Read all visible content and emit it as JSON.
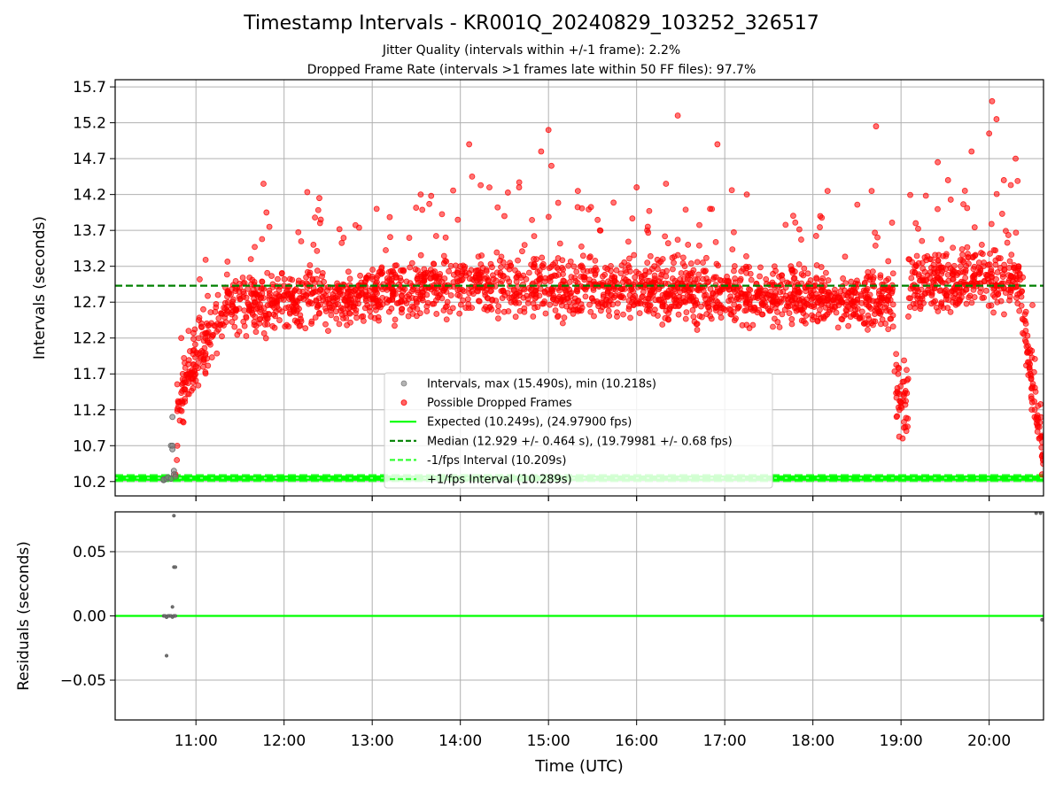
{
  "title": "Timestamp Intervals - KR001Q_20240829_103252_326517",
  "subtitle_1": "Jitter Quality (intervals within +/-1 frame): 2.2%",
  "subtitle_2": "Dropped Frame Rate (intervals >1 frames late within 50 FF files): 97.7%",
  "colors": {
    "dropped": "#ff0000",
    "intervals": "#808080",
    "expected": "#00ff00",
    "median": "#008000",
    "fps_band": "#33ff33",
    "grid": "#b0b0b0"
  },
  "chart_data": [
    {
      "type": "scatter",
      "title": "Timestamp Intervals - KR001Q_20240829_103252_326517",
      "xlabel": "",
      "ylabel": "Intervals (seconds)",
      "x_ticks": [
        "11:00",
        "12:00",
        "13:00",
        "14:00",
        "15:00",
        "16:00",
        "17:00",
        "18:00",
        "19:00",
        "20:00"
      ],
      "y_ticks": [
        "10.2",
        "10.7",
        "11.2",
        "11.7",
        "12.2",
        "12.7",
        "13.2",
        "13.7",
        "14.2",
        "14.7",
        "15.2",
        "15.7"
      ],
      "xlim": [
        "10:05",
        "20:37"
      ],
      "ylim": [
        10.0,
        15.8
      ],
      "grid": true,
      "legend_position": "lower-center",
      "series": [
        {
          "name": "Intervals, max (15.490s), min (10.218s)",
          "style": "gray dots",
          "points": [
            [
              "10:38",
              10.22
            ],
            [
              "10:38",
              10.23
            ],
            [
              "10:40",
              10.24
            ],
            [
              "10:41",
              10.26
            ],
            [
              "10:43",
              10.24
            ],
            [
              "10:43",
              10.7
            ],
            [
              "10:44",
              10.65
            ],
            [
              "10:44",
              10.7
            ],
            [
              "10:44",
              11.1
            ],
            [
              "10:45",
              10.35
            ],
            [
              "10:45",
              10.3
            ],
            [
              "10:46",
              10.27
            ]
          ]
        },
        {
          "name": "Possible Dropped Frames",
          "style": "red dots",
          "points": [
            [
              "10:46",
              10.3
            ],
            [
              "10:47",
              10.5
            ],
            [
              "10:48",
              11.3
            ],
            [
              "10:49",
              11.05
            ],
            [
              "10:50",
              12.2
            ],
            [
              "10:51",
              11.7
            ],
            [
              "10:55",
              12.3
            ],
            [
              "10:58",
              11.5
            ],
            [
              "11:02",
              12.45
            ],
            [
              "11:05",
              12.6
            ],
            [
              "11:15",
              12.8
            ],
            [
              "11:25",
              12.65
            ],
            [
              "11:40",
              12.7
            ],
            [
              "11:46",
              14.35
            ],
            [
              "11:48",
              13.95
            ],
            [
              "11:50",
              13.75
            ],
            [
              "12:00",
              12.8
            ],
            [
              "12:10",
              13.0
            ],
            [
              "12:20",
              13.5
            ],
            [
              "12:24",
              14.15
            ],
            [
              "12:25",
              13.85
            ],
            [
              "12:30",
              12.3
            ],
            [
              "12:40",
              12.8
            ],
            [
              "13:00",
              12.9
            ],
            [
              "13:03",
              14.0
            ],
            [
              "13:20",
              12.6
            ],
            [
              "13:33",
              14.2
            ],
            [
              "13:40",
              13.1
            ],
            [
              "13:50",
              13.6
            ],
            [
              "14:00",
              13.2
            ],
            [
              "14:06",
              14.9
            ],
            [
              "14:08",
              14.45
            ],
            [
              "14:15",
              12.9
            ],
            [
              "14:30",
              13.9
            ],
            [
              "14:40",
              14.3
            ],
            [
              "14:50",
              13.3
            ],
            [
              "14:55",
              14.8
            ],
            [
              "15:00",
              15.1
            ],
            [
              "15:02",
              14.6
            ],
            [
              "15:10",
              13.0
            ],
            [
              "15:20",
              14.25
            ],
            [
              "15:35",
              13.7
            ],
            [
              "15:45",
              13.05
            ],
            [
              "16:00",
              14.3
            ],
            [
              "16:12",
              13.2
            ],
            [
              "16:20",
              14.35
            ],
            [
              "16:28",
              15.3
            ],
            [
              "16:35",
              13.5
            ],
            [
              "16:50",
              14.0
            ],
            [
              "16:55",
              14.9
            ],
            [
              "17:00",
              13.0
            ],
            [
              "17:15",
              14.2
            ],
            [
              "17:30",
              12.8
            ],
            [
              "17:45",
              13.2
            ],
            [
              "17:55",
              12.9
            ],
            [
              "18:05",
              13.9
            ],
            [
              "18:10",
              14.25
            ],
            [
              "18:20",
              12.7
            ],
            [
              "18:30",
              13.0
            ],
            [
              "18:35",
              12.4
            ],
            [
              "18:40",
              14.25
            ],
            [
              "18:43",
              15.15
            ],
            [
              "18:50",
              13.0
            ],
            [
              "18:58",
              11.7
            ],
            [
              "19:00",
              11.3
            ],
            [
              "19:02",
              10.95
            ],
            [
              "19:05",
              12.5
            ],
            [
              "19:10",
              13.8
            ],
            [
              "19:15",
              13.0
            ],
            [
              "19:25",
              14.65
            ],
            [
              "19:32",
              14.4
            ],
            [
              "19:40",
              12.9
            ],
            [
              "19:48",
              14.8
            ],
            [
              "19:55",
              13.5
            ],
            [
              "20:00",
              15.05
            ],
            [
              "20:02",
              15.5
            ],
            [
              "20:05",
              15.25
            ],
            [
              "20:10",
              14.4
            ],
            [
              "20:18",
              14.7
            ],
            [
              "20:20",
              13.2
            ],
            [
              "20:25",
              12.4
            ],
            [
              "20:28",
              11.7
            ],
            [
              "20:31",
              11.2
            ],
            [
              "20:34",
              10.8
            ],
            [
              "20:36",
              10.3
            ]
          ]
        },
        {
          "name": "Expected (10.249s), (24.97900 fps)",
          "style": "solid line",
          "y": 10.249
        },
        {
          "name": "Median (12.929 +/- 0.464 s), (19.79981 +/- 0.68 fps)",
          "style": "dashed line",
          "y": 12.929
        },
        {
          "name": "-1/fps Interval (10.209s)",
          "style": "dashed line",
          "y": 10.209
        },
        {
          "name": "+1/fps Interval (10.289s)",
          "style": "dashed line",
          "y": 10.289
        }
      ]
    },
    {
      "type": "scatter",
      "title": "",
      "xlabel": "Time (UTC)",
      "ylabel": "Residuals (seconds)",
      "x_ticks": [
        "11:00",
        "12:00",
        "13:00",
        "14:00",
        "15:00",
        "16:00",
        "17:00",
        "18:00",
        "19:00",
        "20:00"
      ],
      "y_ticks": [
        "0.05",
        "0.00",
        "−0.05"
      ],
      "xlim": [
        "10:05",
        "20:37"
      ],
      "ylim": [
        -0.081,
        0.081
      ],
      "grid": true,
      "series": [
        {
          "name": "Residuals",
          "style": "gray dots",
          "points": [
            [
              "10:38",
              0.0
            ],
            [
              "10:39",
              0.0
            ],
            [
              "10:40",
              -0.001
            ],
            [
              "10:41",
              0.0
            ],
            [
              "10:42",
              0.0
            ],
            [
              "10:43",
              0.0
            ],
            [
              "10:44",
              -0.0009
            ],
            [
              "10:45",
              0.0
            ],
            [
              "10:46",
              0.0
            ],
            [
              "10:40",
              -0.031
            ],
            [
              "10:44",
              0.007
            ],
            [
              "10:45",
              0.038
            ],
            [
              "10:46",
              0.038
            ],
            [
              "10:45",
              0.078
            ],
            [
              "20:32",
              0.08
            ],
            [
              "20:35",
              0.08
            ],
            [
              "20:36",
              -0.003
            ]
          ]
        },
        {
          "name": "Zero",
          "style": "solid line",
          "y": 0.0
        }
      ]
    }
  ]
}
